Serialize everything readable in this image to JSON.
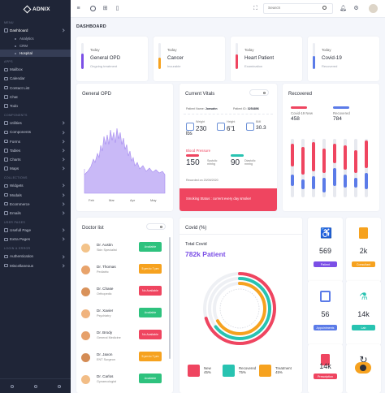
{
  "app": {
    "brand": "ADNIX"
  },
  "sidebar": {
    "menu_heading": "MENU",
    "dashboard": "Dashboard",
    "dashboard_sub": [
      "Analytics",
      "CRM",
      "Hospital"
    ],
    "apps_heading": "APPS",
    "apps": [
      "Mailbox",
      "Calendar",
      "Contact List",
      "Chat",
      "Todo"
    ],
    "components_heading": "COMPONENTS",
    "components": [
      "Utilities",
      "Components",
      "Forms",
      "Tables",
      "Charts",
      "Maps"
    ],
    "collections_heading": "COLLECTIONS",
    "collections": [
      "Widgets",
      "Modals",
      "Ecommerce",
      "Emails"
    ],
    "user_heading": "USER PAGES",
    "user_pages": [
      "Usefull Page",
      "Extra Pages"
    ],
    "login_heading": "LOGIN & ERROR",
    "login": [
      "Authentication",
      "Miscellaneous"
    ]
  },
  "topbar": {
    "search_placeholder": "Search"
  },
  "page": {
    "title": "DASHBOARD"
  },
  "stats": [
    {
      "today": "Today",
      "title": "General OPD",
      "sub": "Ongoing treatment",
      "color": "#7b4fe6",
      "level": 0.6
    },
    {
      "today": "Today",
      "title": "Cancer",
      "sub": "Incurable",
      "color": "#f6a21f",
      "level": 0.45
    },
    {
      "today": "Today",
      "title": "Heart Patient",
      "sub": "Examination",
      "color": "#ef4560",
      "level": 0.55
    },
    {
      "today": "Today",
      "title": "Covid-19",
      "sub": "Recovered",
      "color": "#5b7be8",
      "level": 0.5
    }
  ],
  "opd": {
    "title": "General OPD",
    "months": [
      "Feb",
      "Mar",
      "Apr",
      "May"
    ],
    "color": "#a58bf0"
  },
  "vitals": {
    "title": "Current Vitals",
    "patient_name_label": "Patient Name:",
    "patient_name": "Jonsahn",
    "patient_id_label": "Patient ID:",
    "patient_id": "3254896",
    "weight_label": "Weight",
    "weight_value": "230",
    "weight_unit": "lbs",
    "height_label": "Height",
    "height_value": "6'1",
    "bmi_label": "BMI",
    "bmi_value": "30.3",
    "bp_label": "Blood Pressure",
    "systolic_value": "150",
    "systolic_label": "Systolic mmhg",
    "diastolic_value": "90",
    "diastolic_label": "Diastolic mmhg",
    "recorded": "Recorded on 20/09/2020",
    "alert": "Smoking Status : current every day smoker"
  },
  "recovered": {
    "title": "Recovered",
    "covid_new_label": "Covid-19 New",
    "covid_new_value": "458",
    "recovered_label": "Recovered",
    "recovered_value": "784",
    "red": "#ef4560",
    "blue": "#5b7be8"
  },
  "doctors": {
    "title": "Doctor list",
    "list": [
      {
        "name": "Dr. Austin",
        "spec": "Skin Specialist",
        "status": "Available",
        "color": "#2ec27e"
      },
      {
        "name": "Dr. Thomas",
        "spec": "Pediatric",
        "status": "5 pm to 7 pm",
        "color": "#f6a21f"
      },
      {
        "name": "Dr. Chase",
        "spec": "Orthopedic",
        "status": "No Available",
        "color": "#ef4560"
      },
      {
        "name": "Dr. Xavier",
        "spec": "Psychiatry",
        "status": "Available",
        "color": "#2ec27e"
      },
      {
        "name": "Dr. Brody",
        "spec": "General Medicine",
        "status": "No Available",
        "color": "#ef4560"
      },
      {
        "name": "Dr. Jaxon",
        "spec": "ENT Surgeon",
        "status": "5 pm to 7 pm",
        "color": "#f6a21f"
      },
      {
        "name": "Dr. Carlos",
        "spec": "Gynaecologist",
        "status": "Available",
        "color": "#2ec27e"
      }
    ]
  },
  "covid": {
    "title": "Covid (%)",
    "total_label": "Total Covid",
    "total_value": "782k Patient",
    "legend": [
      {
        "label": "New",
        "value": "45%",
        "color": "#ef4560"
      },
      {
        "label": "Recovered",
        "value": "75%",
        "color": "#28c3b1"
      },
      {
        "label": "Treatment",
        "value": "45%",
        "color": "#f6a21f"
      }
    ]
  },
  "tiles": [
    {
      "value": "569",
      "label": "Patient",
      "color": "#7b4fe6",
      "icon": "accessible-icon"
    },
    {
      "value": "2k",
      "label": "Consultant",
      "color": "#f6a21f",
      "icon": "document-icon"
    },
    {
      "value": "56",
      "label": "Appointments",
      "color": "#5b7be8",
      "icon": "calendar-icon"
    },
    {
      "value": "14k",
      "label": "Lab",
      "color": "#28c3b1",
      "icon": "lab-icon"
    },
    {
      "value": "14k",
      "label": "Prescription",
      "color": "#ef4560",
      "icon": "prescription-icon"
    },
    {
      "value": "",
      "label": "",
      "color": "#f6a21f",
      "icon": "refresh-icon"
    }
  ]
}
